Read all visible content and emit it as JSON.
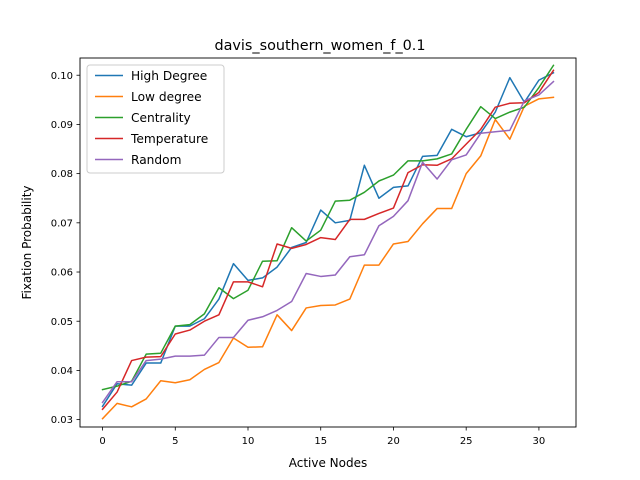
{
  "chart_data": {
    "type": "line",
    "title": "davis_southern_women_f_0.1",
    "xlabel": "Active Nodes",
    "ylabel": "Fixation Probability",
    "xlim": [
      -1.55,
      32.55
    ],
    "ylim": [
      0.0285,
      0.1035
    ],
    "x_ticks": [
      0,
      5,
      10,
      15,
      20,
      25,
      30
    ],
    "y_ticks": [
      0.03,
      0.04,
      0.05,
      0.06,
      0.07,
      0.08,
      0.09,
      0.1
    ],
    "y_tick_labels": [
      "0.03",
      "0.04",
      "0.05",
      "0.06",
      "0.07",
      "0.08",
      "0.09",
      "0.10"
    ],
    "legend_position": "upper-left",
    "grid": false,
    "x": [
      0,
      1,
      2,
      3,
      4,
      5,
      6,
      7,
      8,
      9,
      10,
      11,
      12,
      13,
      14,
      15,
      16,
      17,
      18,
      19,
      20,
      21,
      22,
      23,
      24,
      25,
      26,
      27,
      28,
      29,
      30,
      31
    ],
    "series": [
      {
        "name": "High Degree",
        "color": "#1f77b4",
        "values": [
          0.0327,
          0.0373,
          0.037,
          0.0415,
          0.0415,
          0.049,
          0.049,
          0.0505,
          0.0545,
          0.0617,
          0.0583,
          0.0588,
          0.061,
          0.065,
          0.066,
          0.0726,
          0.07,
          0.0705,
          0.0817,
          0.075,
          0.0772,
          0.0775,
          0.0835,
          0.0837,
          0.089,
          0.0875,
          0.0883,
          0.0925,
          0.0995,
          0.0945,
          0.099,
          0.1005
        ]
      },
      {
        "name": "Low degree",
        "color": "#ff7f0e",
        "values": [
          0.0302,
          0.0333,
          0.0326,
          0.0342,
          0.0379,
          0.0375,
          0.0381,
          0.0402,
          0.0416,
          0.0466,
          0.0447,
          0.0448,
          0.0513,
          0.0481,
          0.0527,
          0.0532,
          0.0533,
          0.0545,
          0.0614,
          0.0614,
          0.0657,
          0.0662,
          0.0698,
          0.0729,
          0.0729,
          0.08,
          0.0836,
          0.091,
          0.087,
          0.0937,
          0.0952,
          0.0955
        ]
      },
      {
        "name": "Centrality",
        "color": "#2ca02c",
        "values": [
          0.0361,
          0.0368,
          0.0378,
          0.0433,
          0.0435,
          0.049,
          0.0493,
          0.0515,
          0.0568,
          0.0546,
          0.0563,
          0.0622,
          0.0623,
          0.069,
          0.0663,
          0.0685,
          0.0744,
          0.0746,
          0.0762,
          0.0785,
          0.0797,
          0.0826,
          0.0826,
          0.083,
          0.084,
          0.089,
          0.0936,
          0.0912,
          0.0925,
          0.0935,
          0.0975,
          0.102
        ]
      },
      {
        "name": "Temperature",
        "color": "#d62728",
        "values": [
          0.0321,
          0.0356,
          0.042,
          0.0427,
          0.0428,
          0.0474,
          0.0482,
          0.05,
          0.0513,
          0.058,
          0.058,
          0.057,
          0.0657,
          0.0648,
          0.0656,
          0.067,
          0.0666,
          0.0707,
          0.0707,
          0.0719,
          0.073,
          0.0802,
          0.0818,
          0.0817,
          0.083,
          0.086,
          0.089,
          0.0935,
          0.0943,
          0.0944,
          0.0965,
          0.101
        ]
      },
      {
        "name": "Random",
        "color": "#9467bd",
        "values": [
          0.0335,
          0.0377,
          0.0377,
          0.042,
          0.0423,
          0.0429,
          0.0429,
          0.0431,
          0.0467,
          0.0467,
          0.0502,
          0.0509,
          0.0522,
          0.054,
          0.0597,
          0.0591,
          0.0594,
          0.0631,
          0.0635,
          0.0694,
          0.0713,
          0.0745,
          0.0823,
          0.0789,
          0.0828,
          0.0838,
          0.0882,
          0.0885,
          0.0888,
          0.0948,
          0.096,
          0.0987
        ]
      }
    ]
  }
}
